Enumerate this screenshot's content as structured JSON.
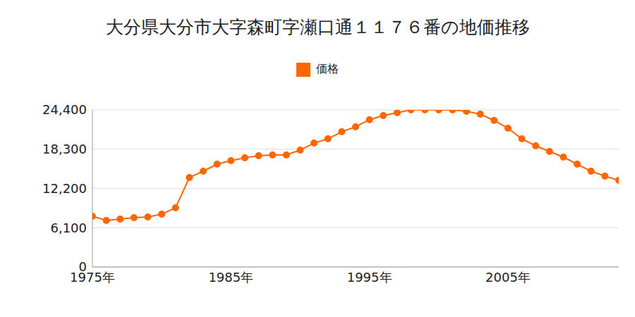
{
  "chart_data": {
    "type": "line",
    "title": "大分県大分市大字森町字瀬口通１１７６番の地価推移",
    "x": [
      1975,
      1976,
      1977,
      1978,
      1979,
      1980,
      1981,
      1982,
      1983,
      1984,
      1985,
      1986,
      1987,
      1988,
      1989,
      1990,
      1991,
      1992,
      1993,
      1994,
      1995,
      1996,
      1997,
      1998,
      1999,
      2000,
      2001,
      2002,
      2003,
      2004,
      2005,
      2006,
      2007,
      2008,
      2009,
      2010,
      2011,
      2012,
      2013
    ],
    "series": [
      {
        "name": "価格",
        "color": "#ff6600",
        "marker": "circle",
        "values": [
          7880,
          7220,
          7440,
          7660,
          7770,
          8200,
          9190,
          13900,
          14880,
          15970,
          16520,
          16960,
          17290,
          17400,
          17400,
          18160,
          19250,
          19910,
          21000,
          21770,
          22870,
          23520,
          23960,
          24400,
          24400,
          24400,
          24400,
          24180,
          23740,
          22760,
          21550,
          19910,
          18820,
          17940,
          17070,
          15970,
          14880,
          14110,
          13460
        ]
      }
    ],
    "xlim": [
      1975,
      2013
    ],
    "xticks": [
      {
        "value": 1975,
        "label": "1975年"
      },
      {
        "value": 1985,
        "label": "1985年"
      },
      {
        "value": 1995,
        "label": "1995年"
      },
      {
        "value": 2005,
        "label": "2005年"
      }
    ],
    "ylim": [
      0,
      24400
    ],
    "yticks": [
      0,
      {
        "value": 6100,
        "label": "6,100"
      },
      {
        "value": 12200,
        "label": "12,200"
      },
      {
        "value": 18300,
        "label": "18,300"
      },
      {
        "value": 24400,
        "label": "24,400"
      }
    ],
    "grid": true,
    "legend": "top"
  }
}
